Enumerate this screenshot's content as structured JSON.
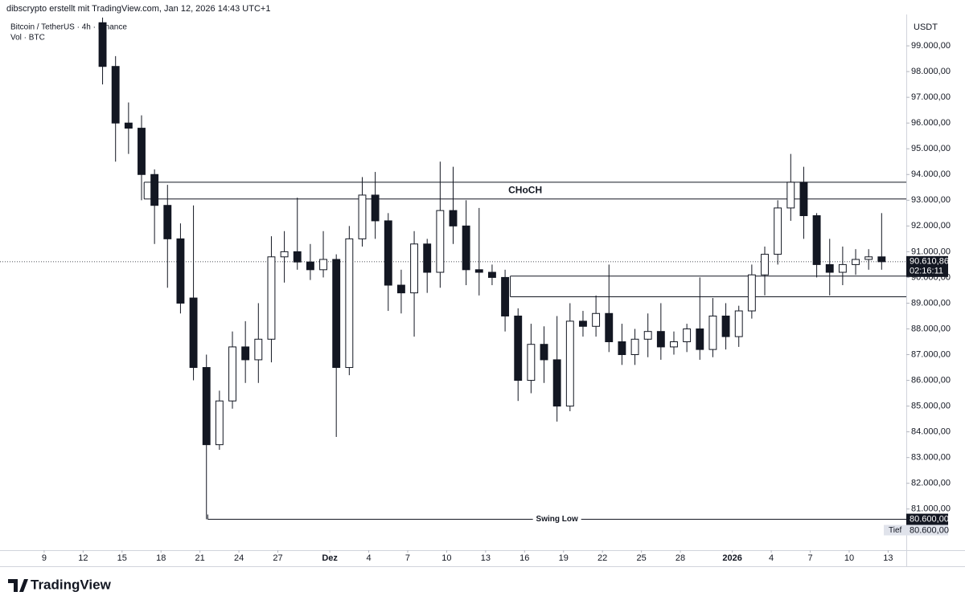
{
  "header": {
    "credit": "dibscrypto erstellt mit TradingView.com, Jan 12, 2026 14:43 UTC+1",
    "logo": "TradingView"
  },
  "chart_data": {
    "type": "candlestick",
    "title": "Bitcoin / TetherUS · 4h · Binance",
    "subtitle": "Vol · BTC",
    "currency": "USDT",
    "color_up": "#ffffff",
    "color_down": "#131722",
    "edge_color": "#131722",
    "x": [
      13,
      14,
      15,
      16,
      17,
      18,
      19,
      20,
      21,
      22,
      23,
      24,
      25,
      26,
      27,
      28,
      29,
      30,
      31,
      32,
      33,
      34,
      35,
      36,
      37,
      38,
      39,
      40,
      41,
      42,
      43,
      44,
      45,
      46,
      47,
      48,
      49,
      50,
      51,
      52,
      53,
      54,
      55,
      56,
      57,
      58,
      59,
      60,
      61,
      62,
      63,
      64,
      65,
      66,
      67,
      68,
      69,
      70,
      71,
      72,
      73
    ],
    "open": [
      99900,
      98200,
      96000,
      95800,
      94000,
      92800,
      91500,
      89200,
      86500,
      83500,
      85200,
      87300,
      86800,
      87600,
      90800,
      91000,
      90600,
      90300,
      90700,
      86500,
      91500,
      93200,
      92200,
      89700,
      89400,
      91300,
      90200,
      92600,
      92000,
      90300,
      90200,
      90000,
      88500,
      86000,
      87400,
      86800,
      85000,
      88300,
      88100,
      88600,
      87500,
      87000,
      87600,
      87900,
      87300,
      87500,
      88000,
      87200,
      88500,
      87700,
      88700,
      90100,
      90900,
      92700,
      93700,
      92400,
      90500,
      90200,
      90500,
      90700,
      90800
    ],
    "high": [
      100100,
      98600,
      96800,
      96300,
      94200,
      93600,
      92100,
      92800,
      87000,
      85600,
      87900,
      88300,
      89000,
      91600,
      91800,
      93100,
      91300,
      91800,
      90900,
      92000,
      93900,
      94100,
      92500,
      90300,
      91800,
      91500,
      94500,
      94300,
      93000,
      92700,
      90500,
      90300,
      88800,
      88200,
      88100,
      88500,
      89000,
      88700,
      89300,
      90500,
      88200,
      88000,
      88600,
      89000,
      87900,
      88200,
      90000,
      89200,
      89000,
      88900,
      90500,
      91200,
      93000,
      94800,
      94300,
      92500,
      91500,
      91200,
      91100,
      91100,
      92500
    ],
    "low": [
      97500,
      94500,
      94800,
      93000,
      91300,
      89600,
      88600,
      86000,
      80600,
      83300,
      84900,
      85900,
      85900,
      86700,
      89800,
      90300,
      89900,
      90000,
      83800,
      86200,
      91200,
      91500,
      88700,
      88600,
      87700,
      89400,
      89600,
      91300,
      89700,
      89300,
      89700,
      87900,
      85200,
      85500,
      85900,
      84400,
      84800,
      87700,
      87700,
      87100,
      86600,
      86600,
      86900,
      86800,
      87000,
      87100,
      86800,
      86900,
      87200,
      87300,
      88400,
      89300,
      90500,
      92200,
      91500,
      90000,
      89300,
      89700,
      90100,
      90300,
      90300
    ],
    "close": [
      98200,
      96000,
      95800,
      94000,
      92800,
      91500,
      89000,
      86500,
      83500,
      85200,
      87300,
      86800,
      87600,
      90800,
      91000,
      90600,
      90300,
      90700,
      86500,
      91500,
      93200,
      92200,
      89700,
      89400,
      91300,
      90200,
      92600,
      92000,
      90300,
      90200,
      90000,
      88500,
      86000,
      87400,
      86800,
      85000,
      88300,
      88100,
      88600,
      87500,
      87000,
      87600,
      87900,
      87300,
      87500,
      88000,
      87200,
      88500,
      87700,
      88700,
      90100,
      90900,
      92700,
      93700,
      92400,
      90500,
      90200,
      90500,
      90700,
      90800,
      90610.86
    ],
    "xlim": [
      5.6,
      75.4
    ],
    "xticks": [
      9,
      12,
      15,
      18,
      21,
      24,
      27,
      {
        "value": 31,
        "label": "Dez"
      },
      {
        "value": 34,
        "label": "4"
      },
      {
        "value": 37,
        "label": "7"
      },
      {
        "value": 40,
        "label": "10"
      },
      {
        "value": 43,
        "label": "13"
      },
      {
        "value": 46,
        "label": "16"
      },
      {
        "value": 49,
        "label": "19"
      },
      {
        "value": 52,
        "label": "22"
      },
      {
        "value": 55,
        "label": "25"
      },
      {
        "value": 58,
        "label": "28"
      },
      {
        "value": 62,
        "label": "2026"
      },
      {
        "value": 65,
        "label": "4"
      },
      {
        "value": 68,
        "label": "7"
      },
      {
        "value": 71,
        "label": "10"
      },
      {
        "value": 74,
        "label": "13"
      }
    ],
    "ylim": [
      79400,
      100220
    ],
    "yticks": [
      {
        "value": 81000,
        "label": "81.000,00"
      },
      {
        "value": 82000,
        "label": "82.000,00"
      },
      {
        "value": 83000,
        "label": "83.000,00"
      },
      {
        "value": 84000,
        "label": "84.000,00"
      },
      {
        "value": 85000,
        "label": "85.000,00"
      },
      {
        "value": 86000,
        "label": "86.000,00"
      },
      {
        "value": 87000,
        "label": "87.000,00"
      },
      {
        "value": 88000,
        "label": "88.000,00"
      },
      {
        "value": 89000,
        "label": "89.000,00"
      },
      {
        "value": 90000,
        "label": "90.000,00"
      },
      {
        "value": 91000,
        "label": "91.000,00"
      },
      {
        "value": 92000,
        "label": "92.000,00"
      },
      {
        "value": 93000,
        "label": "93.000,00"
      },
      {
        "value": 94000,
        "label": "94.000,00"
      },
      {
        "value": 95000,
        "label": "95.000,00"
      },
      {
        "value": 96000,
        "label": "96.000,00"
      },
      {
        "value": 97000,
        "label": "97.000,00"
      },
      {
        "value": 98000,
        "label": "98.000,00"
      },
      {
        "value": 99000,
        "label": "99.000,00"
      }
    ],
    "zones": [
      {
        "label": "CHoCH",
        "top": 93700,
        "bottom": 93050,
        "from": 16.7
      },
      {
        "top": 90050,
        "bottom": 89250,
        "from": 44.9
      }
    ],
    "swing_low": {
      "text": "Swing Low",
      "value": 80600,
      "label": "80.600,00",
      "from": 21.6
    },
    "low_marker": {
      "text": "Tief",
      "label": "80.600,00"
    },
    "last_price": {
      "value": 90610.86,
      "label": "90.610,86",
      "countdown": "02:16:11"
    }
  }
}
